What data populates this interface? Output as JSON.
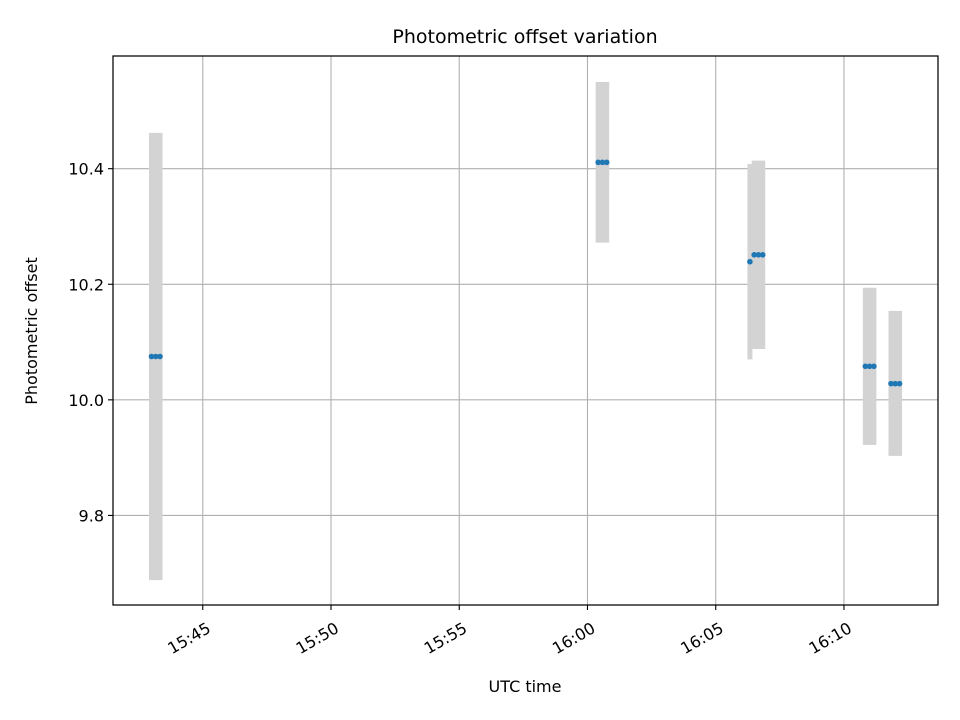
{
  "chart_data": {
    "type": "scatter",
    "title": "Photometric offset variation",
    "xlabel": "UTC time",
    "ylabel": "Photometric offset",
    "x_axis_type": "time",
    "xlim": [
      "15:41:30",
      "16:13:40"
    ],
    "ylim": [
      9.645,
      10.595
    ],
    "x_ticks": [
      "15:45",
      "15:50",
      "15:55",
      "16:00",
      "16:05",
      "16:10"
    ],
    "x_tick_labels": [
      "15:45",
      "15:50",
      "15:55",
      "16:00",
      "16:05",
      "16:10"
    ],
    "y_ticks": [
      9.8,
      10.0,
      10.2,
      10.4
    ],
    "y_tick_labels": [
      "9.8",
      "10.0",
      "10.2",
      "10.4"
    ],
    "x_tick_label_rotation": "30°",
    "grid": true,
    "legend": "none",
    "marker_color": "#1f77b4",
    "errorbar_color": "#d3d3d3",
    "points": [
      {
        "x": "15:43:00",
        "y": 10.075,
        "err_low": 9.688,
        "err_high": 10.462
      },
      {
        "x": "15:43:10",
        "y": 10.075,
        "err_low": 9.688,
        "err_high": 10.462
      },
      {
        "x": "15:43:20",
        "y": 10.075,
        "err_low": 9.688,
        "err_high": 10.462
      },
      {
        "x": "16:00:25",
        "y": 10.411,
        "err_low": 10.272,
        "err_high": 10.55
      },
      {
        "x": "16:00:35",
        "y": 10.411,
        "err_low": 10.272,
        "err_high": 10.55
      },
      {
        "x": "16:00:45",
        "y": 10.411,
        "err_low": 10.272,
        "err_high": 10.55
      },
      {
        "x": "16:06:20",
        "y": 10.239,
        "err_low": 10.07,
        "err_high": 10.408
      },
      {
        "x": "16:06:30",
        "y": 10.251,
        "err_low": 10.088,
        "err_high": 10.414
      },
      {
        "x": "16:06:40",
        "y": 10.251,
        "err_low": 10.088,
        "err_high": 10.414
      },
      {
        "x": "16:06:50",
        "y": 10.251,
        "err_low": 10.088,
        "err_high": 10.414
      },
      {
        "x": "16:10:50",
        "y": 10.058,
        "err_low": 9.922,
        "err_high": 10.194
      },
      {
        "x": "16:11:00",
        "y": 10.058,
        "err_low": 9.922,
        "err_high": 10.194
      },
      {
        "x": "16:11:10",
        "y": 10.058,
        "err_low": 9.922,
        "err_high": 10.194
      },
      {
        "x": "16:11:50",
        "y": 10.028,
        "err_low": 9.903,
        "err_high": 10.154
      },
      {
        "x": "16:12:00",
        "y": 10.028,
        "err_low": 9.903,
        "err_high": 10.154
      },
      {
        "x": "16:12:10",
        "y": 10.028,
        "err_low": 9.903,
        "err_high": 10.154
      }
    ]
  }
}
